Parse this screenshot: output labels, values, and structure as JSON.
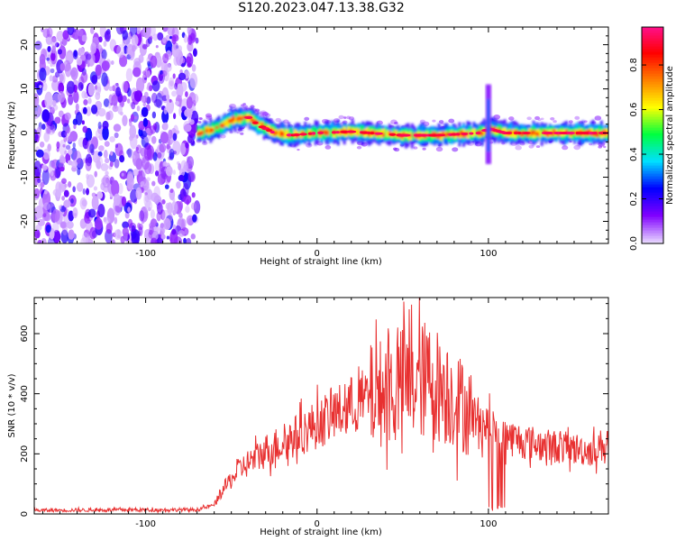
{
  "title": "S120.2023.047.13.38.G32",
  "chart_data": [
    {
      "type": "heatmap",
      "xlabel": "Height of straight line (km)",
      "ylabel": "Frequency (Hz)",
      "xlim": [
        -165,
        170
      ],
      "ylim": [
        -25,
        24
      ],
      "xticks": [
        -100,
        0,
        100
      ],
      "yticks": [
        -20,
        -10,
        0,
        10,
        20
      ],
      "colorbar": {
        "label": "Normalized spectral amplitude",
        "range": [
          0,
          0.97
        ],
        "ticks": [
          0.0,
          0.2,
          0.4,
          0.6,
          0.8
        ],
        "colormap": [
          "#e8d8ff",
          "#8000ff",
          "#0000ff",
          "#00e0ff",
          "#00ff40",
          "#ffff00",
          "#ff8000",
          "#ff0000",
          "#ff1090"
        ]
      },
      "features": {
        "noise_region_x": [
          -165,
          -70
        ],
        "signal_start_x": -70,
        "signal_center_hz": [
          [
            -70,
            0
          ],
          [
            -60,
            1
          ],
          [
            -50,
            3
          ],
          [
            -40,
            3.5
          ],
          [
            -35,
            2
          ],
          [
            -25,
            0
          ],
          [
            -15,
            -0.5
          ],
          [
            0,
            0
          ],
          [
            20,
            0.3
          ],
          [
            50,
            -0.5
          ],
          [
            70,
            -0.5
          ],
          [
            95,
            0
          ],
          [
            100,
            1
          ],
          [
            110,
            0
          ],
          [
            140,
            0
          ],
          [
            170,
            0
          ]
        ],
        "spike_x": 100,
        "spike_range_hz": [
          -7,
          11
        ]
      }
    },
    {
      "type": "line",
      "xlabel": "Height of straight line (km)",
      "ylabel": "SNR (10 * v/v)",
      "xlim": [
        -165,
        170
      ],
      "ylim": [
        0,
        720
      ],
      "xticks": [
        -100,
        0,
        100
      ],
      "yticks": [
        0,
        200,
        400,
        600
      ],
      "color": "#e83030",
      "envelope": [
        [
          -165,
          12
        ],
        [
          -100,
          14
        ],
        [
          -70,
          14
        ],
        [
          -60,
          30
        ],
        [
          -55,
          80
        ],
        [
          -45,
          150
        ],
        [
          -30,
          210
        ],
        [
          -15,
          250
        ],
        [
          0,
          300
        ],
        [
          20,
          360
        ],
        [
          35,
          400
        ],
        [
          50,
          430
        ],
        [
          60,
          440
        ],
        [
          65,
          450
        ],
        [
          75,
          410
        ],
        [
          85,
          360
        ],
        [
          95,
          310
        ],
        [
          105,
          270
        ],
        [
          115,
          250
        ],
        [
          130,
          230
        ],
        [
          145,
          220
        ],
        [
          160,
          210
        ],
        [
          170,
          240
        ]
      ]
    }
  ]
}
